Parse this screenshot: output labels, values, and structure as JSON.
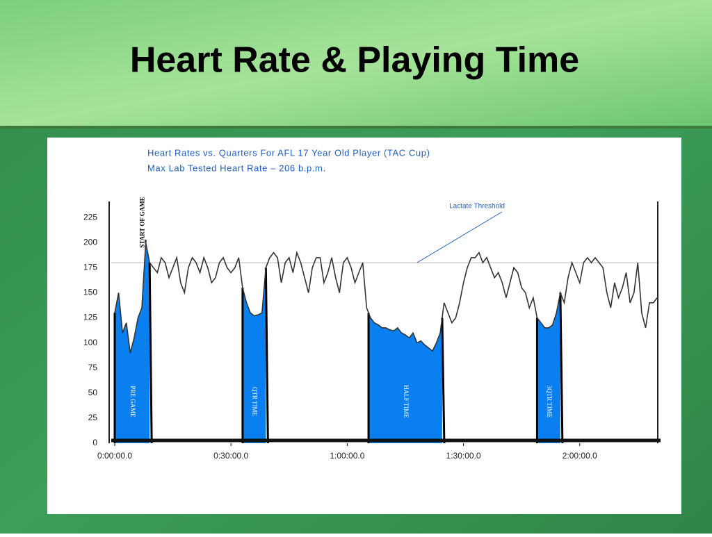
{
  "slide_title": "Heart Rate & Playing Time",
  "chart_data": {
    "type": "line",
    "title": "Heart Rates vs. Quarters For AFL 17 Year Old Player (TAC Cup)",
    "subtitle": "Max Lab Tested Heart Rate – 206 b.p.m.",
    "x": [
      0,
      1,
      2,
      3,
      4,
      5,
      6,
      7,
      8,
      9,
      10,
      11,
      12,
      13,
      14,
      15,
      16,
      17,
      18,
      19,
      20,
      21,
      22,
      23,
      24,
      25,
      26,
      27,
      28,
      29,
      30,
      31,
      32,
      33,
      34,
      35,
      36,
      37,
      38,
      39,
      40,
      41,
      42,
      43,
      44,
      45,
      46,
      47,
      48,
      49,
      50,
      51,
      52,
      53,
      54,
      55,
      56,
      57,
      58,
      59,
      60,
      61,
      62,
      63,
      64,
      65,
      66,
      67,
      68,
      69,
      70,
      71,
      72,
      73,
      74,
      75,
      76,
      77,
      78,
      79,
      80,
      81,
      82,
      83,
      84,
      85,
      86,
      87,
      88,
      89,
      90,
      91,
      92,
      93,
      94,
      95,
      96,
      97,
      98,
      99,
      100,
      101,
      102,
      103,
      104,
      105,
      106,
      107,
      108,
      109,
      110,
      111,
      112,
      113,
      114,
      115,
      116,
      117,
      118,
      119,
      120,
      121,
      122,
      123,
      124,
      125,
      126,
      127,
      128,
      129,
      130,
      131,
      132,
      133,
      134,
      135,
      136,
      137,
      138,
      139,
      140
    ],
    "series": [
      {
        "name": "Heart Rate",
        "color": "#333333",
        "values": [
          130,
          150,
          110,
          120,
          90,
          105,
          125,
          135,
          200,
          180,
          175,
          170,
          185,
          180,
          165,
          175,
          185,
          160,
          150,
          175,
          185,
          180,
          170,
          185,
          175,
          160,
          165,
          180,
          185,
          175,
          170,
          175,
          185,
          155,
          140,
          130,
          127,
          128,
          130,
          175,
          185,
          190,
          185,
          160,
          180,
          185,
          170,
          190,
          180,
          165,
          150,
          175,
          185,
          185,
          160,
          170,
          185,
          165,
          150,
          180,
          185,
          175,
          160,
          170,
          180,
          135,
          125,
          120,
          118,
          115,
          115,
          113,
          112,
          115,
          110,
          108,
          105,
          110,
          100,
          102,
          98,
          95,
          92,
          100,
          110,
          140,
          130,
          120,
          125,
          140,
          160,
          175,
          185,
          185,
          190,
          180,
          185,
          175,
          165,
          170,
          160,
          145,
          160,
          175,
          170,
          155,
          150,
          135,
          145,
          125,
          120,
          115,
          115,
          118,
          130,
          150,
          140,
          165,
          180,
          170,
          160,
          180,
          185,
          180,
          185,
          180,
          175,
          150,
          135,
          160,
          145,
          155,
          170,
          140,
          150,
          180,
          130,
          115,
          140,
          140,
          145
        ]
      }
    ],
    "shaded_periods": [
      {
        "label": "PRE GAME",
        "start": 0,
        "end": 9,
        "color": "#0a7ff0"
      },
      {
        "label": "QTR TIME",
        "start": 33,
        "end": 39,
        "color": "#0a7ff0"
      },
      {
        "label": "HALF TIME",
        "start": 65.5,
        "end": 84.5,
        "color": "#0a7ff0"
      },
      {
        "label": "3QTR TIME",
        "start": 109,
        "end": 115,
        "color": "#0a7ff0"
      }
    ],
    "annotations": [
      {
        "text": "START OF GAME",
        "x": 8
      }
    ],
    "threshold": {
      "label": "Lactate Threshold",
      "value": 180
    },
    "xlim": [
      -0.9,
      140.5
    ],
    "xticks": [
      {
        "value": 0,
        "label": "0:00:00.0"
      },
      {
        "value": 30,
        "label": "0:30:00.0"
      },
      {
        "value": 60,
        "label": "1:00:00.0"
      },
      {
        "value": 90,
        "label": "1:30:00.0"
      },
      {
        "value": 120,
        "label": "2:00:00.0"
      }
    ],
    "ylim": [
      0,
      241
    ],
    "yticks": [
      0,
      25,
      50,
      75,
      100,
      125,
      150,
      175,
      200,
      225
    ]
  }
}
